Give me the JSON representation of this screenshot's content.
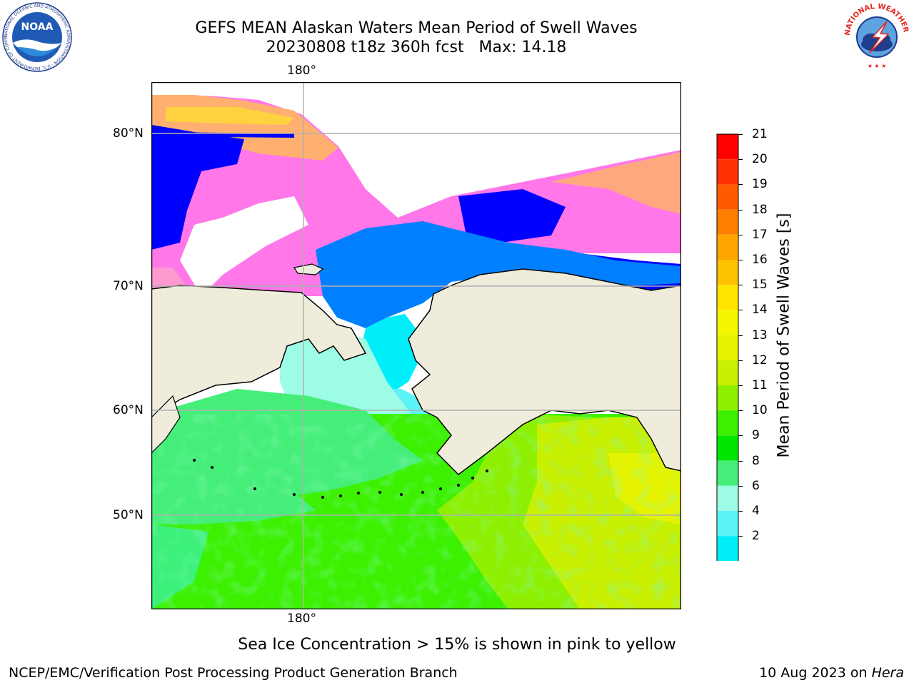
{
  "title": {
    "line1": "GEFS MEAN Alaskan Waters Mean Period of Swell Waves",
    "line2": "20230808 t18z 360h fcst   Max: 14.18"
  },
  "map": {
    "lon_label": "180°",
    "lat_labels": [
      "80°N",
      "70°N",
      "60°N",
      "50°N"
    ],
    "land_color": "#efecdc",
    "coastline_color": "#000000",
    "grid": true
  },
  "colorbar": {
    "label": "Mean Period of Swell Waves [s]",
    "ticks": [
      "21",
      "20",
      "19",
      "18",
      "17",
      "16",
      "15",
      "14",
      "13",
      "12",
      "11",
      "10",
      "9",
      "8",
      "6",
      "4",
      "2"
    ],
    "colors": [
      "#ff0000",
      "#ff3000",
      "#ff5a00",
      "#ff7f00",
      "#ffa500",
      "#ffc200",
      "#ffe400",
      "#f6f600",
      "#e5f300",
      "#c8f000",
      "#8ef000",
      "#3cf000",
      "#00e600",
      "#44ee78",
      "#9cfce6",
      "#5cf4f6",
      "#00eefa",
      "#0080ff"
    ],
    "extend_color": "#0000ff"
  },
  "logos": {
    "noaa": {
      "name": "NOAA",
      "ring_text": "NATIONAL OCEANIC AND ATMOSPHERIC ADMINISTRATION · U.S. DEPARTMENT OF COMMERCE"
    },
    "nws": {
      "ring_text": "NATIONAL WEATHER SERVICE"
    }
  },
  "note": "Sea Ice Concentration > 15% is shown in pink to yellow",
  "footer": {
    "left": "NCEP/EMC/Verification Post Processing Product Generation Branch",
    "date": "10 Aug 2023 on ",
    "machine": "Hera"
  }
}
